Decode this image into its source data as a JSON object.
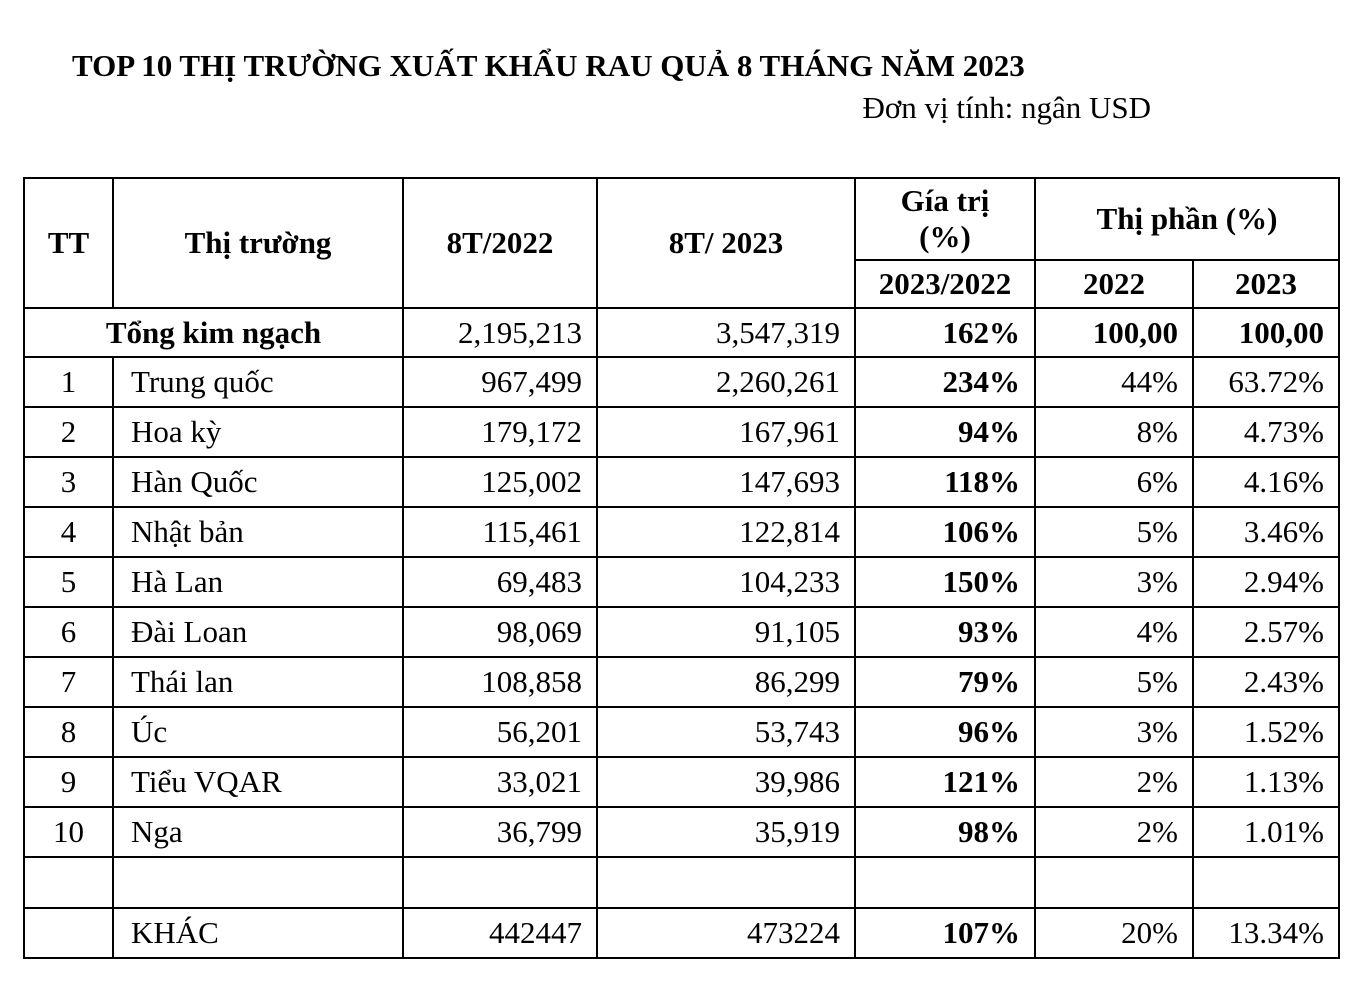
{
  "title": "TOP 10 THỊ TRƯỜNG XUẤT KHẨU RAU QUẢ 8 THÁNG NĂM 2023",
  "unit": "Đơn vị tính: ngân USD",
  "headers": {
    "tt": "TT",
    "market": "Thị trường",
    "y2022": "8T/2022",
    "y2023": "8T/ 2023",
    "value_pct_line1": "Gía trị",
    "value_pct_line2": "(%)",
    "value_pct_sub": "2023/2022",
    "share": "Thị phần (%)",
    "share_2022": "2022",
    "share_2023": "2023"
  },
  "total": {
    "label": "Tổng kim ngạch",
    "v2022": "2,195,213",
    "v2023": "3,547,319",
    "pct": "162%",
    "share2022": "100,00",
    "share2023": "100,00"
  },
  "rows": [
    {
      "tt": "1",
      "market": "Trung quốc",
      "v2022": "967,499",
      "v2023": "2,260,261",
      "pct": "234%",
      "share2022": "44%",
      "share2023": "63.72%"
    },
    {
      "tt": "2",
      "market": "Hoa kỳ",
      "v2022": "179,172",
      "v2023": "167,961",
      "pct": "94%",
      "share2022": "8%",
      "share2023": "4.73%"
    },
    {
      "tt": "3",
      "market": "Hàn Quốc",
      "v2022": "125,002",
      "v2023": "147,693",
      "pct": "118%",
      "share2022": "6%",
      "share2023": "4.16%"
    },
    {
      "tt": "4",
      "market": "Nhật bản",
      "v2022": "115,461",
      "v2023": "122,814",
      "pct": "106%",
      "share2022": "5%",
      "share2023": "3.46%"
    },
    {
      "tt": "5",
      "market": "Hà Lan",
      "v2022": "69,483",
      "v2023": "104,233",
      "pct": "150%",
      "share2022": "3%",
      "share2023": "2.94%"
    },
    {
      "tt": "6",
      "market": "Đài Loan",
      "v2022": "98,069",
      "v2023": "91,105",
      "pct": "93%",
      "share2022": "4%",
      "share2023": "2.57%"
    },
    {
      "tt": "7",
      "market": "Thái lan",
      "v2022": "108,858",
      "v2023": "86,299",
      "pct": "79%",
      "share2022": "5%",
      "share2023": "2.43%"
    },
    {
      "tt": "8",
      "market": "Úc",
      "v2022": "56,201",
      "v2023": "53,743",
      "pct": "96%",
      "share2022": "3%",
      "share2023": "1.52%"
    },
    {
      "tt": "9",
      "market": "Tiểu VQAR",
      "v2022": "33,021",
      "v2023": "39,986",
      "pct": "121%",
      "share2022": "2%",
      "share2023": "1.13%"
    },
    {
      "tt": "10",
      "market": "Nga",
      "v2022": "36,799",
      "v2023": "35,919",
      "pct": "98%",
      "share2022": "2%",
      "share2023": "1.01%"
    }
  ],
  "other": {
    "market": "KHÁC",
    "v2022": "442447",
    "v2023": "473224",
    "pct": "107%",
    "share2022": "20%",
    "share2023": "13.34%"
  }
}
